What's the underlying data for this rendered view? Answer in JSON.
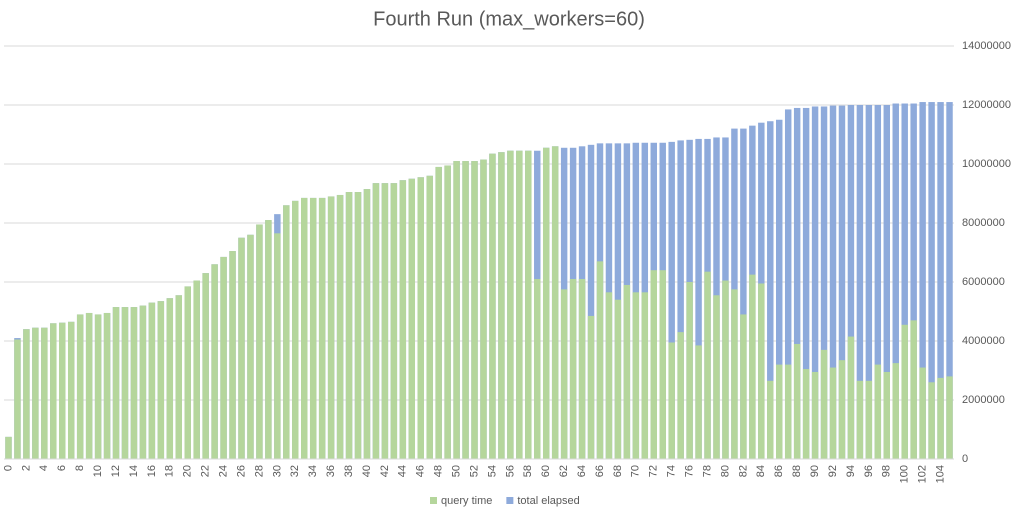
{
  "chart_data": {
    "type": "bar",
    "overlap": true,
    "title": "Fourth Run (max_workers=60)",
    "categories": [
      0,
      null,
      2,
      null,
      4,
      null,
      6,
      null,
      8,
      null,
      10,
      null,
      12,
      null,
      14,
      null,
      16,
      null,
      18,
      null,
      20,
      null,
      22,
      null,
      24,
      null,
      26,
      null,
      28,
      null,
      30,
      null,
      32,
      null,
      34,
      null,
      36,
      null,
      38,
      null,
      40,
      null,
      42,
      null,
      44,
      null,
      46,
      null,
      48,
      null,
      50,
      null,
      52,
      null,
      54,
      null,
      56,
      null,
      58,
      null,
      60,
      null,
      62,
      null,
      64,
      null,
      66,
      null,
      68,
      null,
      70,
      null,
      72,
      null,
      74,
      null,
      76,
      null,
      78,
      null,
      80,
      null,
      82,
      null,
      84,
      null,
      86,
      null,
      88,
      null,
      90,
      null,
      92,
      null,
      94,
      null,
      96,
      null,
      98,
      null,
      100,
      null,
      102,
      null,
      104,
      null
    ],
    "series": [
      {
        "name": "total elapsed",
        "color": "#8eaadb",
        "values": [
          750000,
          4100000,
          4400000,
          4450000,
          4450000,
          4600000,
          4620000,
          4650000,
          4900000,
          4950000,
          4900000,
          4950000,
          5150000,
          5150000,
          5150000,
          5200000,
          5300000,
          5350000,
          5450000,
          5550000,
          5850000,
          6050000,
          6300000,
          6600000,
          6850000,
          7050000,
          7500000,
          7600000,
          7950000,
          8100000,
          8300000,
          8600000,
          8750000,
          8850000,
          8850000,
          8850000,
          8900000,
          8950000,
          9050000,
          9050000,
          9150000,
          9350000,
          9350000,
          9350000,
          9450000,
          9500000,
          9550000,
          9600000,
          9900000,
          9950000,
          10100000,
          10100000,
          10100000,
          10150000,
          10350000,
          10400000,
          10450000,
          10450000,
          10450000,
          10450000,
          10550000,
          10600000,
          10550000,
          10550000,
          10600000,
          10650000,
          10700000,
          10700000,
          10700000,
          10700000,
          10720000,
          10720000,
          10720000,
          10720000,
          10750000,
          10800000,
          10820000,
          10850000,
          10850000,
          10900000,
          10900000,
          11200000,
          11200000,
          11300000,
          11400000,
          11450000,
          11500000,
          11850000,
          11900000,
          11900000,
          11950000,
          11950000,
          11980000,
          11980000,
          12000000,
          12000000,
          12000000,
          12000000,
          12000000,
          12050000,
          12050000,
          12050000,
          12100000,
          12100000,
          12100000,
          12100000
        ]
      },
      {
        "name": "query time",
        "color": "#b5d69c",
        "values": [
          750000,
          4050000,
          4400000,
          4450000,
          4450000,
          4600000,
          4620000,
          4650000,
          4900000,
          4950000,
          4900000,
          4950000,
          5150000,
          5150000,
          5150000,
          5200000,
          5300000,
          5350000,
          5450000,
          5550000,
          5850000,
          6050000,
          6300000,
          6600000,
          6850000,
          7050000,
          7500000,
          7600000,
          7950000,
          8100000,
          7650000,
          8600000,
          8750000,
          8850000,
          8850000,
          8850000,
          8900000,
          8950000,
          9050000,
          9050000,
          9150000,
          9350000,
          9350000,
          9350000,
          9450000,
          9500000,
          9550000,
          9600000,
          9900000,
          9950000,
          10100000,
          10100000,
          10100000,
          10150000,
          10350000,
          10400000,
          10450000,
          10450000,
          10450000,
          6100000,
          10550000,
          10600000,
          5750000,
          6100000,
          6100000,
          4850000,
          6700000,
          5650000,
          5400000,
          5900000,
          5650000,
          5650000,
          6400000,
          6400000,
          3950000,
          4300000,
          6000000,
          3850000,
          6350000,
          5550000,
          6050000,
          5750000,
          4900000,
          6250000,
          5950000,
          2650000,
          3200000,
          3200000,
          3900000,
          3050000,
          2950000,
          3700000,
          3100000,
          3350000,
          4150000,
          2650000,
          2650000,
          3200000,
          2950000,
          3250000,
          4550000,
          4700000,
          3100000,
          2600000,
          2750000,
          2800000
        ]
      }
    ],
    "ylim": [
      0,
      14000000
    ],
    "yticks": [
      0,
      2000000,
      4000000,
      6000000,
      8000000,
      10000000,
      12000000,
      14000000
    ],
    "grid": true,
    "legend": "bottom"
  }
}
